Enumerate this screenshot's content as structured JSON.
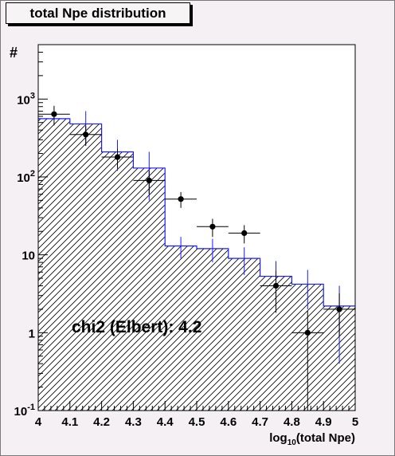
{
  "chart_data": {
    "type": "histogram-with-points",
    "title": "total Npe distribution",
    "xlabel": "log",
    "xlabel_sub": "10",
    "xlabel_rest": "(total Npe)",
    "ylabel": "#",
    "xlim": [
      4.0,
      5.0
    ],
    "ylim": [
      0.1,
      5000
    ],
    "yscale": "log",
    "x_ticks": [
      "4",
      "4.1",
      "4.2",
      "4.3",
      "4.4",
      "4.5",
      "4.6",
      "4.7",
      "4.8",
      "4.9",
      "5"
    ],
    "y_ticks": [
      {
        "value": 0.1,
        "base": "10",
        "exp": "-1"
      },
      {
        "value": 1,
        "base": "1",
        "exp": ""
      },
      {
        "value": 10,
        "base": "10",
        "exp": ""
      },
      {
        "value": 100,
        "base": "10",
        "exp": "2"
      },
      {
        "value": 1000,
        "base": "10",
        "exp": "3"
      }
    ],
    "histogram": {
      "bin_edges": [
        4.0,
        4.1,
        4.2,
        4.3,
        4.4,
        4.5,
        4.6,
        4.7,
        4.8,
        4.9,
        5.0
      ],
      "values": [
        560,
        480,
        210,
        130,
        13,
        12,
        9,
        5.3,
        4.2,
        2.2
      ],
      "errors": [
        25,
        220,
        90,
        80,
        4,
        4,
        3.5,
        3,
        2.2,
        1.8
      ]
    },
    "points": {
      "x": [
        4.05,
        4.15,
        4.25,
        4.35,
        4.45,
        4.55,
        4.65,
        4.75,
        4.85,
        4.95
      ],
      "y": [
        640,
        350,
        180,
        90,
        52,
        23,
        19,
        4,
        1,
        2
      ],
      "xerr": 0.05,
      "yerr_low": [
        180,
        100,
        50,
        30,
        12,
        6,
        5,
        2.2,
        0.9,
        1.1
      ],
      "yerr_high": [
        180,
        100,
        50,
        30,
        12,
        6,
        5,
        2.2,
        0.9,
        1.2
      ]
    },
    "annotation": "chi2 (Elbert): 4.2",
    "colors": {
      "histogram": "#1a1aff",
      "points": "#000000",
      "hatch": "#000000"
    }
  }
}
